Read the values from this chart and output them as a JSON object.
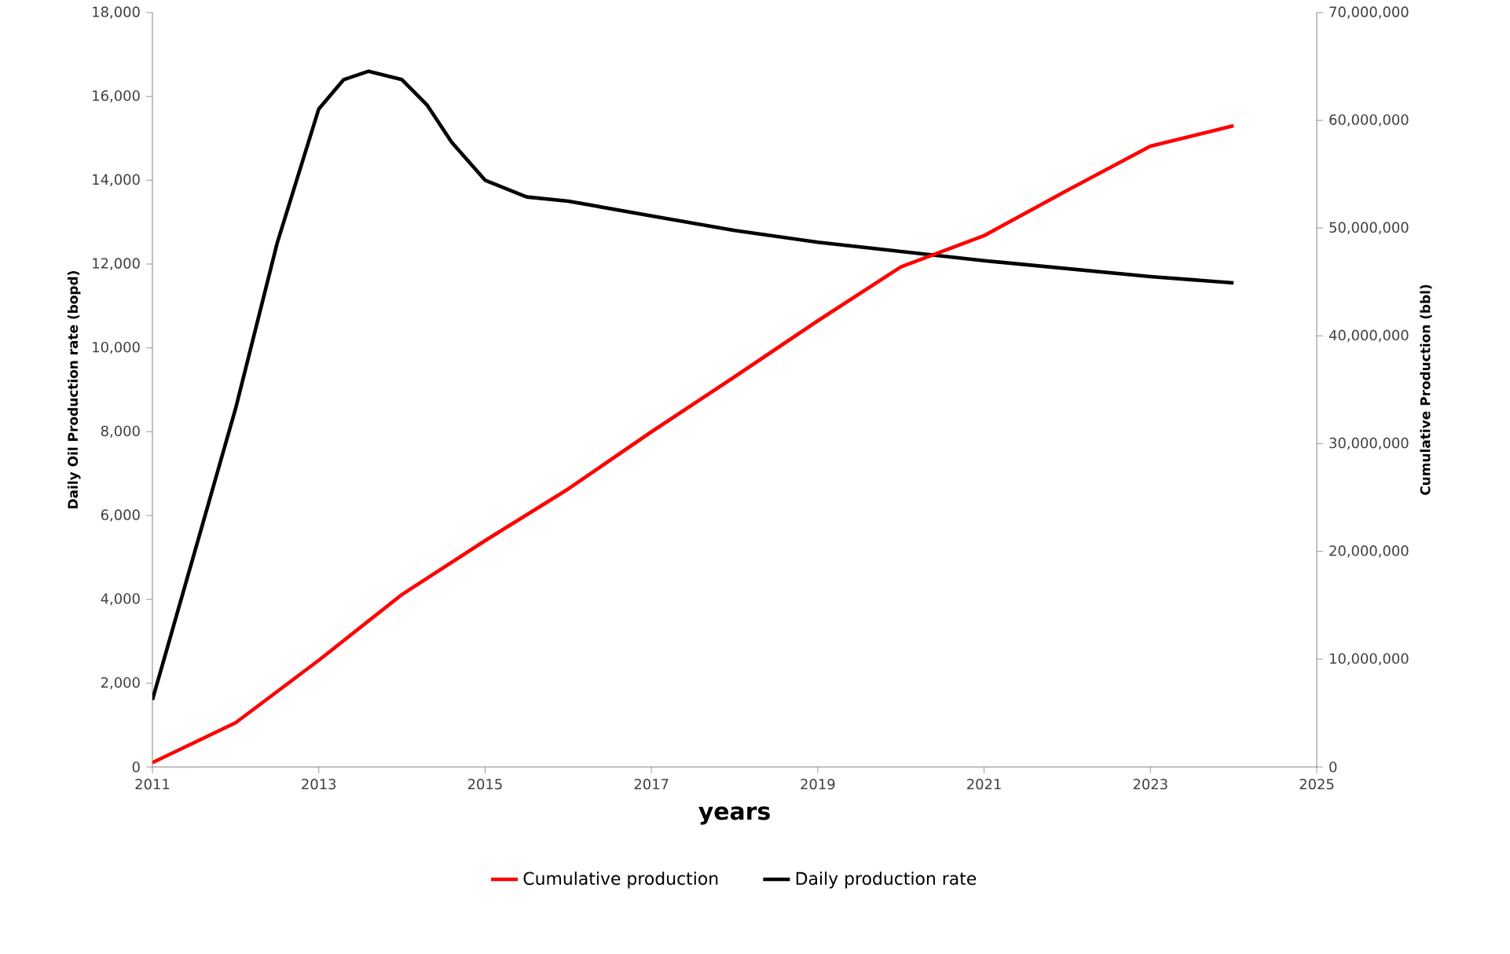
{
  "chart_data": {
    "type": "line",
    "xlabel": "years",
    "ylabel": "Daily Oil Production rate (bopd)",
    "y2label": "Cumulative  Production (bbl)",
    "xlim": [
      2011,
      2025
    ],
    "xticks": [
      2011,
      2013,
      2015,
      2017,
      2019,
      2021,
      2023,
      2025
    ],
    "ylim": [
      0,
      18000
    ],
    "yticks": [
      0,
      {
        "value": 2000,
        "label": "2,000"
      },
      {
        "value": 4000,
        "label": "4,000"
      },
      {
        "value": 6000,
        "label": "6,000"
      },
      {
        "value": 8000,
        "label": "8,000"
      },
      {
        "value": 10000,
        "label": "10,000"
      },
      {
        "value": 12000,
        "label": "12,000"
      },
      {
        "value": 14000,
        "label": "14,000"
      },
      {
        "value": 16000,
        "label": "16,000"
      },
      {
        "value": 18000,
        "label": "18,000"
      }
    ],
    "y2lim": [
      0,
      70000000
    ],
    "y2ticks": [
      0,
      {
        "value": 10000000,
        "label": "10,000,000"
      },
      {
        "value": 20000000,
        "label": "20,000,000"
      },
      {
        "value": 30000000,
        "label": "30,000,000"
      },
      {
        "value": 40000000,
        "label": "40,000,000"
      },
      {
        "value": 50000000,
        "label": "50,000,000"
      },
      {
        "value": 60000000,
        "label": "60,000,000"
      },
      {
        "value": 70000000,
        "label": "70,000,000"
      }
    ],
    "legend": "bottom",
    "grid": false,
    "line_style": "solid",
    "series": [
      {
        "name": "Cumulative production",
        "color": "#ff0000",
        "axis": "y2",
        "x": [
          2011,
          2012,
          2013,
          2014,
          2015,
          2016,
          2017,
          2018,
          2019,
          2020,
          2021,
          2022,
          2023,
          2024
        ],
        "values": [
          400000,
          4100000,
          9900000,
          16000000,
          21000000,
          25800000,
          31100000,
          36200000,
          41400000,
          46400000,
          49300000,
          53500000,
          57600000,
          59500000
        ]
      },
      {
        "name": "Daily production rate",
        "color": "#000000",
        "axis": "y",
        "x": [
          2011,
          2012,
          2012.5,
          2013,
          2013.3,
          2013.6,
          2014,
          2014.3,
          2014.6,
          2015,
          2015.5,
          2016,
          2017,
          2018,
          2019,
          2020,
          2021,
          2022,
          2023,
          2024
        ],
        "values": [
          1600,
          8550,
          12500,
          15700,
          16400,
          16600,
          16400,
          15800,
          14900,
          14000,
          13600,
          13500,
          13150,
          12800,
          12520,
          12300,
          12080,
          11890,
          11700,
          11550
        ]
      }
    ]
  }
}
